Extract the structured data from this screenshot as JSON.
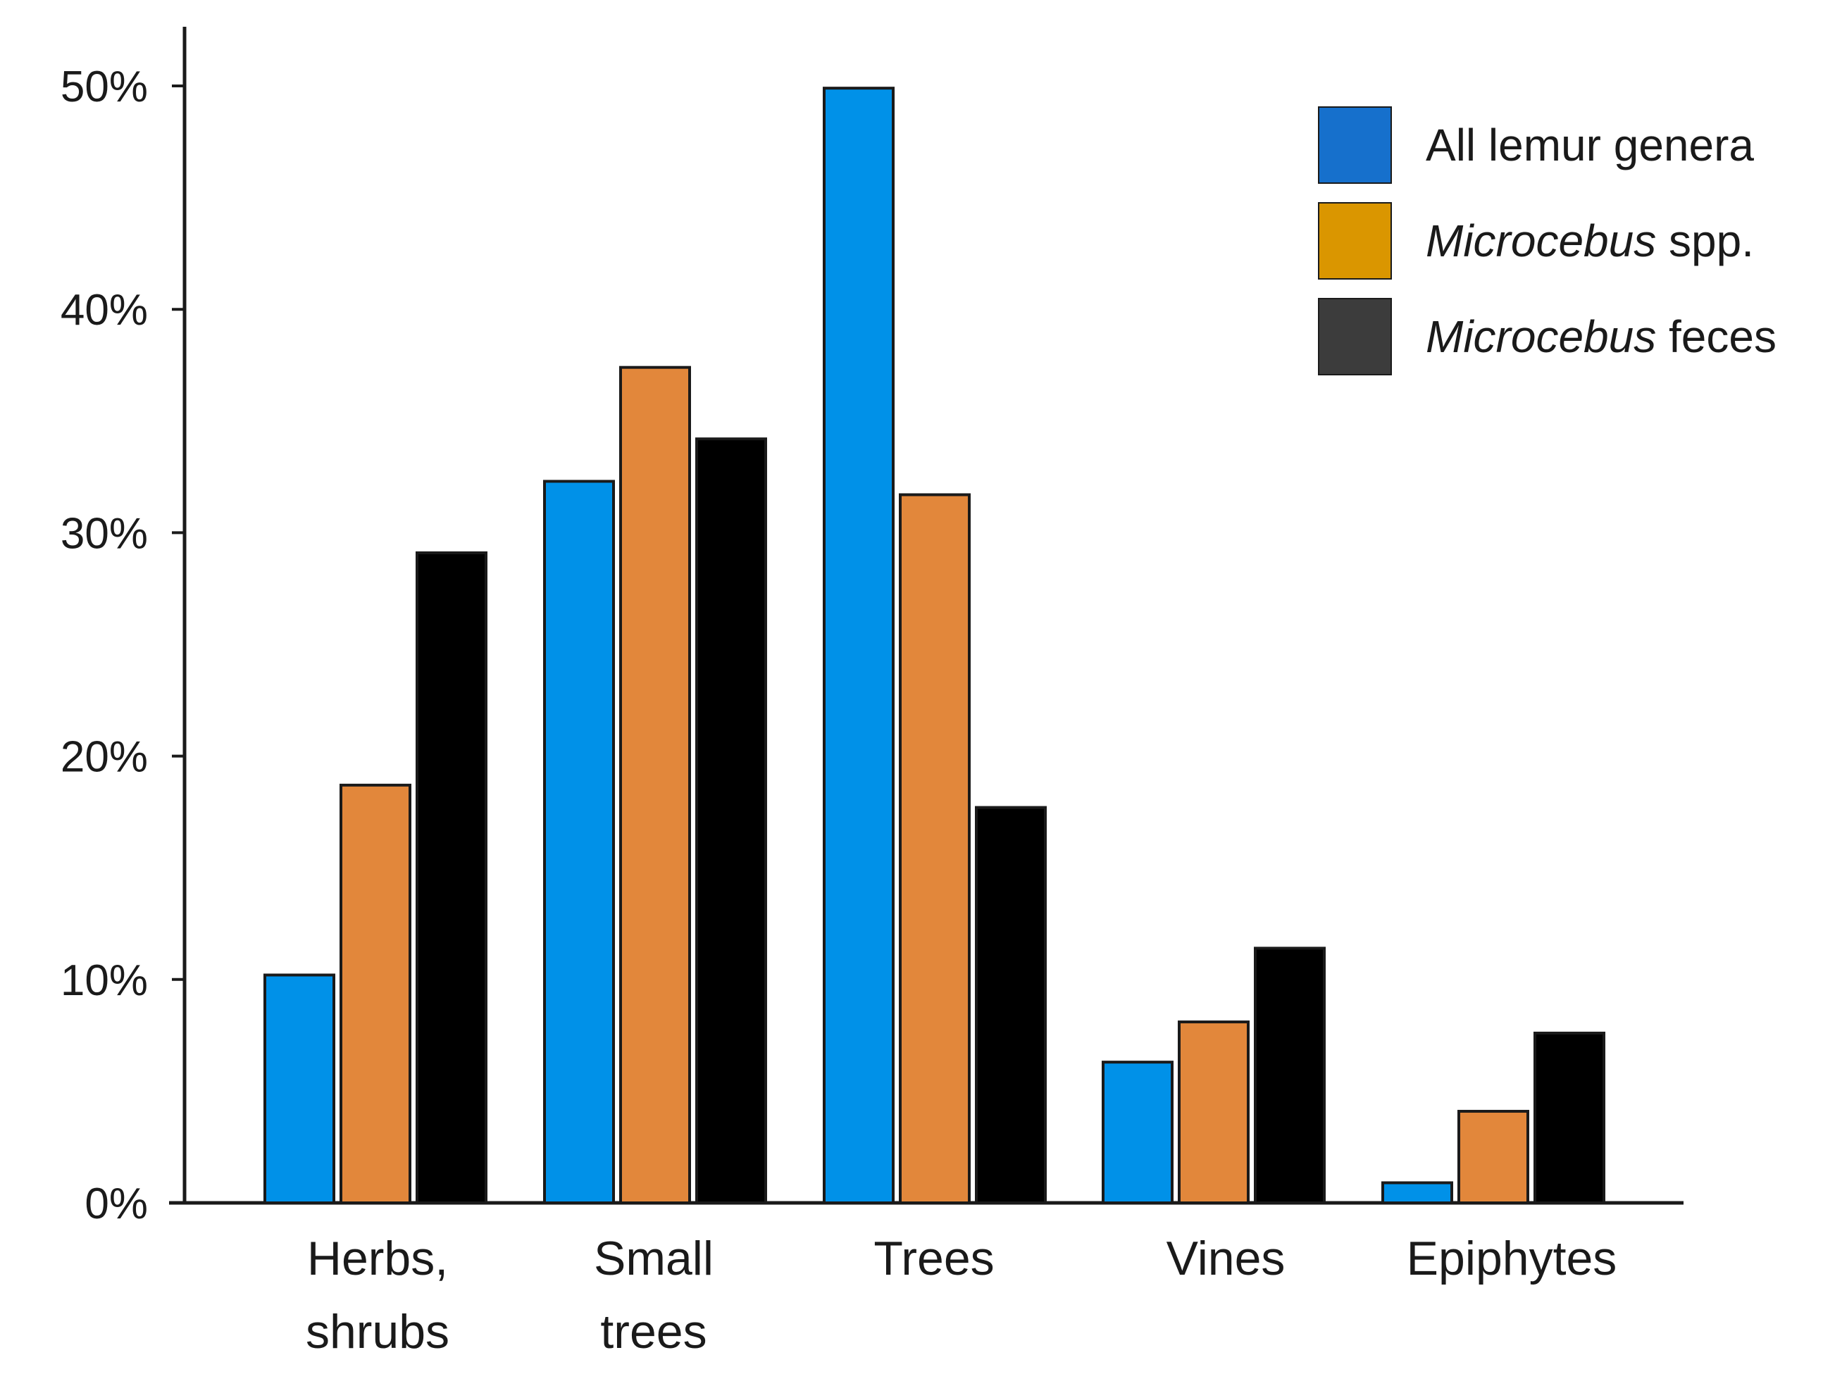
{
  "chart_data": {
    "type": "bar",
    "categories": [
      [
        "Herbs,",
        "shrubs"
      ],
      [
        "Small",
        "trees"
      ],
      [
        "Trees"
      ],
      [
        "Vines"
      ],
      [
        "Epiphytes"
      ]
    ],
    "series": [
      {
        "name_parts": [
          {
            "text": "All lemur genera",
            "italic": false
          }
        ],
        "color": "#0091e8",
        "legend_color": "#1670cc",
        "values": [
          10.2,
          32.3,
          49.9,
          6.3,
          0.9
        ]
      },
      {
        "name_parts": [
          {
            "text": "Microcebus",
            "italic": true
          },
          {
            "text": " spp.",
            "italic": false
          }
        ],
        "color": "#e2873b",
        "legend_color": "#da9600",
        "values": [
          18.7,
          37.4,
          31.7,
          8.1,
          4.1
        ]
      },
      {
        "name_parts": [
          {
            "text": "Microcebus",
            "italic": true
          },
          {
            "text": " feces",
            "italic": false
          }
        ],
        "color": "#000000",
        "legend_color": "#3c3c3c",
        "values": [
          29.1,
          34.2,
          17.7,
          11.4,
          7.6
        ]
      }
    ],
    "yticks": [
      "0%",
      "10%",
      "20%",
      "30%",
      "40%",
      "50%"
    ],
    "ylim": [
      0,
      50
    ],
    "xlabel": "",
    "ylabel": "",
    "title": "",
    "legend_position": "top-right",
    "grid": false
  }
}
